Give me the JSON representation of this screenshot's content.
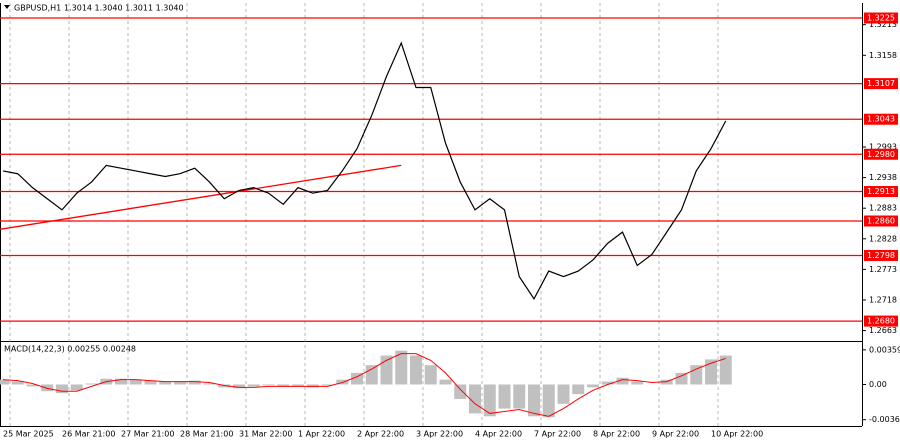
{
  "chart_data": [
    {
      "type": "line",
      "title": "GBPUSD,H1",
      "subtitle": "1.3014 1.3040 1.3011 1.3040",
      "categories": [
        "25 Mar 2025",
        null,
        null,
        null,
        "26 Mar 21:00",
        null,
        null,
        null,
        "27 Mar 21:00",
        null,
        null,
        null,
        "28 Mar 21:00",
        null,
        null,
        null,
        "31 Mar 22:00",
        null,
        null,
        null,
        "1 Apr 22:00",
        null,
        null,
        null,
        "2 Apr 22:00",
        null,
        null,
        null,
        "3 Apr 22:00",
        null,
        null,
        null,
        "4 Apr 22:00",
        null,
        null,
        null,
        "7 Apr 22:00",
        null,
        null,
        null,
        "8 Apr 22:00",
        null,
        null,
        null,
        "9 Apr 22:00",
        null,
        null,
        null,
        "10 Apr 22:00",
        null
      ],
      "series": [
        {
          "name": "GBPUSD",
          "color": "#000000",
          "values": [
            1.295,
            1.2945,
            1.292,
            1.29,
            1.288,
            1.291,
            1.293,
            1.296,
            1.2955,
            1.295,
            1.2945,
            1.294,
            1.2945,
            1.2955,
            1.293,
            1.29,
            1.2915,
            1.292,
            1.291,
            1.289,
            1.292,
            1.291,
            1.2915,
            1.295,
            1.299,
            1.305,
            1.312,
            1.318,
            1.31,
            1.31,
            1.3,
            1.293,
            1.288,
            1.29,
            1.288,
            1.276,
            1.272,
            1.277,
            1.276,
            1.277,
            1.279,
            1.282,
            1.284,
            1.278,
            1.28,
            1.284,
            1.288,
            1.295,
            1.299,
            1.304
          ]
        }
      ],
      "trendline": {
        "color": "#ff0000",
        "x": [
          0,
          27
        ],
        "values": [
          1.2845,
          1.296
        ]
      },
      "levels": [
        1.3225,
        1.3107,
        1.3043,
        {
          "value": 1.298,
          "label": "1.2980"
        },
        1.2913,
        {
          "value": 1.286,
          "label": "1.2860"
        },
        1.2798,
        {
          "value": 1.268,
          "label": "1.2680"
        }
      ],
      "level_color": "#ff0000",
      "ylim": [
        1.2646,
        1.3252
      ],
      "yticks": [
        1.3213,
        1.3158,
        1.2993,
        1.2938,
        1.2883,
        1.2828,
        1.2773,
        1.2718,
        1.2663
      ]
    },
    {
      "type": "bar",
      "title": "MACD(14,22,3) 0.00255 0.00248",
      "series": [
        {
          "name": "MACD",
          "color": "#c0c0c0",
          "values": [
            0.0005,
            0.0003,
            -0.0002,
            -0.0007,
            -0.0009,
            -0.0006,
            0.0001,
            0.0006,
            0.0006,
            0.0005,
            0.0004,
            0.0003,
            0.0003,
            0.0004,
            0.0001,
            -0.0003,
            -0.0004,
            -0.0002,
            -0.0001,
            -0.0002,
            -0.0002,
            -0.0003,
            -0.0001,
            0.0005,
            0.0012,
            0.002,
            0.003,
            0.0035,
            0.003,
            0.002,
            0.0005,
            -0.0015,
            -0.003,
            -0.0033,
            -0.0025,
            -0.0025,
            -0.0033,
            -0.0034,
            -0.002,
            -0.001,
            -0.0003,
            0.0003,
            0.0007,
            0.0003,
            0,
            0.0005,
            0.0012,
            0.002,
            0.0026,
            0.003
          ]
        },
        {
          "name": "Signal",
          "color": "#ff0000",
          "values": [
            0.0005,
            0.0004,
            0.0001,
            -0.0004,
            -0.0007,
            -0.0007,
            -0.0002,
            0.0003,
            0.0005,
            0.0005,
            0.0004,
            0.0003,
            0.0003,
            0.0003,
            0.0002,
            -0.0001,
            -0.0003,
            -0.0003,
            -0.0002,
            -0.0002,
            -0.0002,
            -0.0002,
            -0.0002,
            0.0002,
            0.0008,
            0.0016,
            0.0025,
            0.0032,
            0.0032,
            0.0025,
            0.0012,
            -0.0005,
            -0.002,
            -0.003,
            -0.0028,
            -0.0026,
            -0.003,
            -0.0033,
            -0.0025,
            -0.0015,
            -0.0006,
            0,
            0.0005,
            0.0004,
            0.0002,
            0.0003,
            0.0009,
            0.0016,
            0.0022,
            0.0027
          ]
        }
      ],
      "ylim": [
        -0.0042,
        0.0043
      ],
      "yticks": [
        0.00359,
        {
          "value": 0,
          "label": "0.00"
        },
        -0.00365
      ]
    }
  ]
}
